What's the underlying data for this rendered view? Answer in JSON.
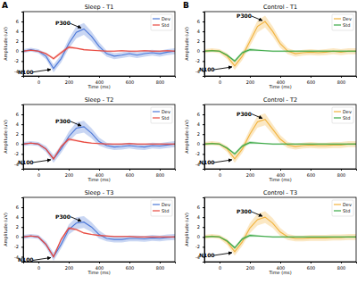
{
  "panel_labels": [
    "A",
    "B"
  ],
  "chart_data": [
    {
      "type": "line",
      "title": "Sleep - T1",
      "x_label": "Time (ms)",
      "y_label": "Amplitude (uV)",
      "x": [
        -100,
        -50,
        0,
        50,
        100,
        150,
        200,
        250,
        300,
        350,
        400,
        450,
        500,
        550,
        600,
        650,
        700,
        750,
        800,
        850,
        900
      ],
      "xlim": [
        -100,
        900
      ],
      "xticks": [
        0,
        200,
        400,
        600,
        800
      ],
      "ylim": [
        -5,
        8
      ],
      "yticks": [
        -4,
        -2,
        0,
        2,
        4,
        6
      ],
      "legend": "upper right",
      "series": [
        {
          "name": "Dev",
          "color": "#4c78d8",
          "values": [
            0,
            0.3,
            0,
            -1,
            -3.5,
            -1.5,
            1.5,
            3.8,
            4.5,
            3,
            1,
            -0.5,
            -1,
            -0.8,
            -0.5,
            -0.8,
            -0.5,
            -0.3,
            -0.5,
            -0.2,
            0
          ],
          "error": [
            0.4,
            0.4,
            0.4,
            0.6,
            0.8,
            0.8,
            1,
            1.2,
            1.2,
            1,
            0.8,
            0.6,
            0.6,
            0.6,
            0.6,
            0.6,
            0.6,
            0.6,
            0.6,
            0.6,
            0.6
          ]
        },
        {
          "name": "Std",
          "color": "#e8463c",
          "values": [
            0,
            0.2,
            0,
            -0.5,
            -1.5,
            -0.3,
            0.8,
            0.6,
            0.3,
            0.2,
            0.1,
            0,
            0,
            0.1,
            0,
            0,
            0.1,
            0,
            0,
            0.1,
            0
          ],
          "error": [
            0.15,
            0.15,
            0.15,
            0.2,
            0.3,
            0.3,
            0.3,
            0.2,
            0.15,
            0.15,
            0.15,
            0.15,
            0.15,
            0.15,
            0.15,
            0.15,
            0.15,
            0.15,
            0.15,
            0.15,
            0.15
          ]
        }
      ],
      "annotations": [
        {
          "text": "P300",
          "x": 300,
          "y": 4.5
        },
        {
          "text": "N100",
          "x": 100,
          "y": -3.5
        }
      ]
    },
    {
      "type": "line",
      "title": "Control - T1",
      "x_label": "Time (ms)",
      "y_label": "Amplitude (uV)",
      "x": [
        -100,
        -50,
        0,
        50,
        100,
        150,
        200,
        250,
        300,
        350,
        400,
        450,
        500,
        550,
        600,
        650,
        700,
        750,
        800,
        850,
        900
      ],
      "xlim": [
        -100,
        900
      ],
      "xticks": [
        0,
        200,
        400,
        600,
        800
      ],
      "ylim": [
        -5,
        8
      ],
      "yticks": [
        -4,
        -2,
        0,
        2,
        4,
        6
      ],
      "legend": "upper right",
      "series": [
        {
          "name": "Dev",
          "color": "#f2b33d",
          "values": [
            0,
            0.2,
            0,
            -1,
            -3,
            -1,
            2,
            5,
            6,
            4,
            1.5,
            0,
            -0.5,
            -0.3,
            -0.2,
            -0.3,
            -0.2,
            0,
            -0.2,
            0,
            0
          ],
          "error": [
            0.4,
            0.4,
            0.4,
            0.6,
            0.8,
            0.8,
            1,
            1.2,
            1.2,
            1,
            0.8,
            0.6,
            0.6,
            0.6,
            0.6,
            0.6,
            0.6,
            0.6,
            0.6,
            0.6,
            0.6
          ]
        },
        {
          "name": "Std",
          "color": "#3aa845",
          "values": [
            0,
            0.1,
            0,
            -0.8,
            -2,
            -0.3,
            0.3,
            0.2,
            0.1,
            0,
            0,
            0,
            0,
            0,
            0,
            0,
            0,
            0,
            0,
            0,
            0
          ],
          "error": [
            0.15,
            0.15,
            0.15,
            0.2,
            0.3,
            0.3,
            0.3,
            0.2,
            0.15,
            0.15,
            0.15,
            0.15,
            0.15,
            0.15,
            0.15,
            0.15,
            0.15,
            0.15,
            0.15,
            0.15,
            0.15
          ]
        }
      ],
      "annotations": [
        {
          "text": "P300",
          "x": 300,
          "y": 6
        },
        {
          "text": "N100",
          "x": 100,
          "y": -3
        }
      ]
    },
    {
      "type": "line",
      "title": "Sleep - T2",
      "x_label": "Time (ms)",
      "y_label": "Amplitude (uV)",
      "x": [
        -100,
        -50,
        0,
        50,
        100,
        150,
        200,
        250,
        300,
        350,
        400,
        450,
        500,
        550,
        600,
        650,
        700,
        750,
        800,
        850,
        900
      ],
      "xlim": [
        -100,
        900
      ],
      "xticks": [
        0,
        200,
        400,
        600,
        800
      ],
      "ylim": [
        -5,
        8
      ],
      "yticks": [
        -4,
        -2,
        0,
        2,
        4,
        6
      ],
      "legend": "upper right",
      "series": [
        {
          "name": "Dev",
          "color": "#4c78d8",
          "values": [
            0,
            0.2,
            0,
            -1,
            -3,
            -1,
            1.5,
            3.2,
            3.5,
            2.2,
            0.5,
            -0.3,
            -0.6,
            -0.5,
            -0.3,
            -0.5,
            -0.6,
            -0.3,
            -0.4,
            -0.2,
            0
          ],
          "error": [
            0.4,
            0.4,
            0.4,
            0.6,
            0.8,
            0.8,
            1,
            1.2,
            1.2,
            1,
            0.8,
            0.6,
            0.6,
            0.6,
            0.6,
            0.6,
            0.6,
            0.6,
            0.6,
            0.6,
            0.6
          ]
        },
        {
          "name": "Std",
          "color": "#e8463c",
          "values": [
            0,
            0.2,
            0,
            -1,
            -3,
            -0.5,
            1,
            0.7,
            0.4,
            0.2,
            0.1,
            0,
            0,
            0,
            0.1,
            0,
            0,
            0,
            0,
            0,
            0
          ],
          "error": [
            0.15,
            0.15,
            0.15,
            0.2,
            0.3,
            0.3,
            0.3,
            0.2,
            0.15,
            0.15,
            0.15,
            0.15,
            0.15,
            0.15,
            0.15,
            0.15,
            0.15,
            0.15,
            0.15,
            0.15,
            0.15
          ]
        }
      ],
      "annotations": [
        {
          "text": "P300",
          "x": 300,
          "y": 3.5
        },
        {
          "text": "N100",
          "x": 100,
          "y": -3
        }
      ]
    },
    {
      "type": "line",
      "title": "Control - T2",
      "x_label": "Time (ms)",
      "y_label": "Amplitude (uV)",
      "x": [
        -100,
        -50,
        0,
        50,
        100,
        150,
        200,
        250,
        300,
        350,
        400,
        450,
        500,
        550,
        600,
        650,
        700,
        750,
        800,
        850,
        900
      ],
      "xlim": [
        -100,
        900
      ],
      "xticks": [
        0,
        200,
        400,
        600,
        800
      ],
      "ylim": [
        -5,
        8
      ],
      "yticks": [
        -4,
        -2,
        0,
        2,
        4,
        6
      ],
      "legend": "upper right",
      "series": [
        {
          "name": "Dev",
          "color": "#f2b33d",
          "values": [
            0,
            0.2,
            0,
            -1,
            -3,
            -1,
            2,
            4.5,
            5,
            3,
            1,
            -0.2,
            -0.5,
            -0.3,
            -0.2,
            -0.3,
            -0.3,
            -0.2,
            -0.2,
            0,
            0
          ],
          "error": [
            0.4,
            0.4,
            0.4,
            0.6,
            0.8,
            0.8,
            1,
            1.2,
            1.2,
            1,
            0.8,
            0.6,
            0.6,
            0.6,
            0.6,
            0.6,
            0.6,
            0.6,
            0.6,
            0.6,
            0.6
          ]
        },
        {
          "name": "Std",
          "color": "#3aa845",
          "values": [
            0,
            0.1,
            0,
            -0.8,
            -2,
            -0.4,
            0.3,
            0.2,
            0.1,
            0,
            0,
            0,
            0,
            0,
            0,
            0,
            0,
            0,
            0,
            0,
            0
          ],
          "error": [
            0.15,
            0.15,
            0.15,
            0.2,
            0.3,
            0.3,
            0.3,
            0.2,
            0.15,
            0.15,
            0.15,
            0.15,
            0.15,
            0.15,
            0.15,
            0.15,
            0.15,
            0.15,
            0.15,
            0.15,
            0.15
          ]
        }
      ],
      "annotations": [
        {
          "text": "P300",
          "x": 300,
          "y": 5
        },
        {
          "text": "N100",
          "x": 100,
          "y": -3
        }
      ]
    },
    {
      "type": "line",
      "title": "Sleep - T3",
      "x_label": "Time (ms)",
      "y_label": "Amplitude (uV)",
      "x": [
        -100,
        -50,
        0,
        50,
        100,
        150,
        200,
        250,
        300,
        350,
        400,
        450,
        500,
        550,
        600,
        650,
        700,
        750,
        800,
        850,
        900
      ],
      "xlim": [
        -100,
        900
      ],
      "xticks": [
        0,
        200,
        400,
        600,
        800
      ],
      "ylim": [
        -5,
        8
      ],
      "yticks": [
        -4,
        -2,
        0,
        2,
        4,
        6
      ],
      "legend": "upper right",
      "series": [
        {
          "name": "Dev",
          "color": "#4c78d8",
          "values": [
            0,
            0.2,
            0,
            -1.5,
            -4,
            -1.5,
            1.5,
            2.8,
            3,
            2,
            0.5,
            -0.3,
            -0.5,
            -0.5,
            -0.3,
            -0.3,
            -0.4,
            -0.2,
            -0.3,
            -0.1,
            0
          ],
          "error": [
            0.4,
            0.4,
            0.4,
            0.6,
            0.8,
            0.8,
            1,
            1.2,
            1.2,
            1,
            0.8,
            0.6,
            0.6,
            0.6,
            0.6,
            0.6,
            0.6,
            0.6,
            0.6,
            0.6,
            0.6
          ]
        },
        {
          "name": "Std",
          "color": "#e8463c",
          "values": [
            0,
            0.2,
            0,
            -1.5,
            -4,
            -0.5,
            1.8,
            1.5,
            0.8,
            0.5,
            0.3,
            0.2,
            0.1,
            0.1,
            0.1,
            0,
            0,
            0,
            0,
            0,
            0
          ],
          "error": [
            0.15,
            0.15,
            0.15,
            0.2,
            0.3,
            0.3,
            0.3,
            0.2,
            0.15,
            0.15,
            0.15,
            0.15,
            0.15,
            0.15,
            0.15,
            0.15,
            0.15,
            0.15,
            0.15,
            0.15,
            0.15
          ]
        }
      ],
      "annotations": [
        {
          "text": "P300",
          "x": 300,
          "y": 3
        },
        {
          "text": "N100",
          "x": 100,
          "y": -4
        }
      ]
    },
    {
      "type": "line",
      "title": "Control - T3",
      "x_label": "Time (ms)",
      "y_label": "Amplitude (uV)",
      "x": [
        -100,
        -50,
        0,
        50,
        100,
        150,
        200,
        250,
        300,
        350,
        400,
        450,
        500,
        550,
        600,
        650,
        700,
        750,
        800,
        850,
        900
      ],
      "xlim": [
        -100,
        900
      ],
      "xticks": [
        0,
        200,
        400,
        600,
        800
      ],
      "ylim": [
        -5,
        8
      ],
      "yticks": [
        -4,
        -2,
        0,
        2,
        4,
        6
      ],
      "legend": "upper right",
      "series": [
        {
          "name": "Dev",
          "color": "#f2b33d",
          "values": [
            0,
            0.2,
            0,
            -1,
            -3,
            -1,
            1.8,
            3.5,
            4,
            2.8,
            1,
            0,
            -0.3,
            -0.3,
            -0.2,
            -0.2,
            -0.2,
            -0.1,
            -0.1,
            0,
            0
          ],
          "error": [
            0.4,
            0.4,
            0.4,
            0.6,
            0.8,
            0.8,
            1,
            1.2,
            1.2,
            1,
            0.8,
            0.6,
            0.6,
            0.6,
            0.6,
            0.6,
            0.6,
            0.6,
            0.6,
            0.6,
            0.6
          ]
        },
        {
          "name": "Std",
          "color": "#3aa845",
          "values": [
            0,
            0.1,
            0,
            -0.8,
            -2.2,
            -0.4,
            0.3,
            0.2,
            0.1,
            0,
            0,
            0,
            0,
            0,
            0,
            0,
            0,
            0,
            0,
            0,
            0
          ],
          "error": [
            0.15,
            0.15,
            0.15,
            0.2,
            0.3,
            0.3,
            0.3,
            0.2,
            0.15,
            0.15,
            0.15,
            0.15,
            0.15,
            0.15,
            0.15,
            0.15,
            0.15,
            0.15,
            0.15,
            0.15,
            0.15
          ]
        }
      ],
      "annotations": [
        {
          "text": "P300",
          "x": 300,
          "y": 4
        },
        {
          "text": "N100",
          "x": 100,
          "y": -3
        }
      ]
    }
  ]
}
